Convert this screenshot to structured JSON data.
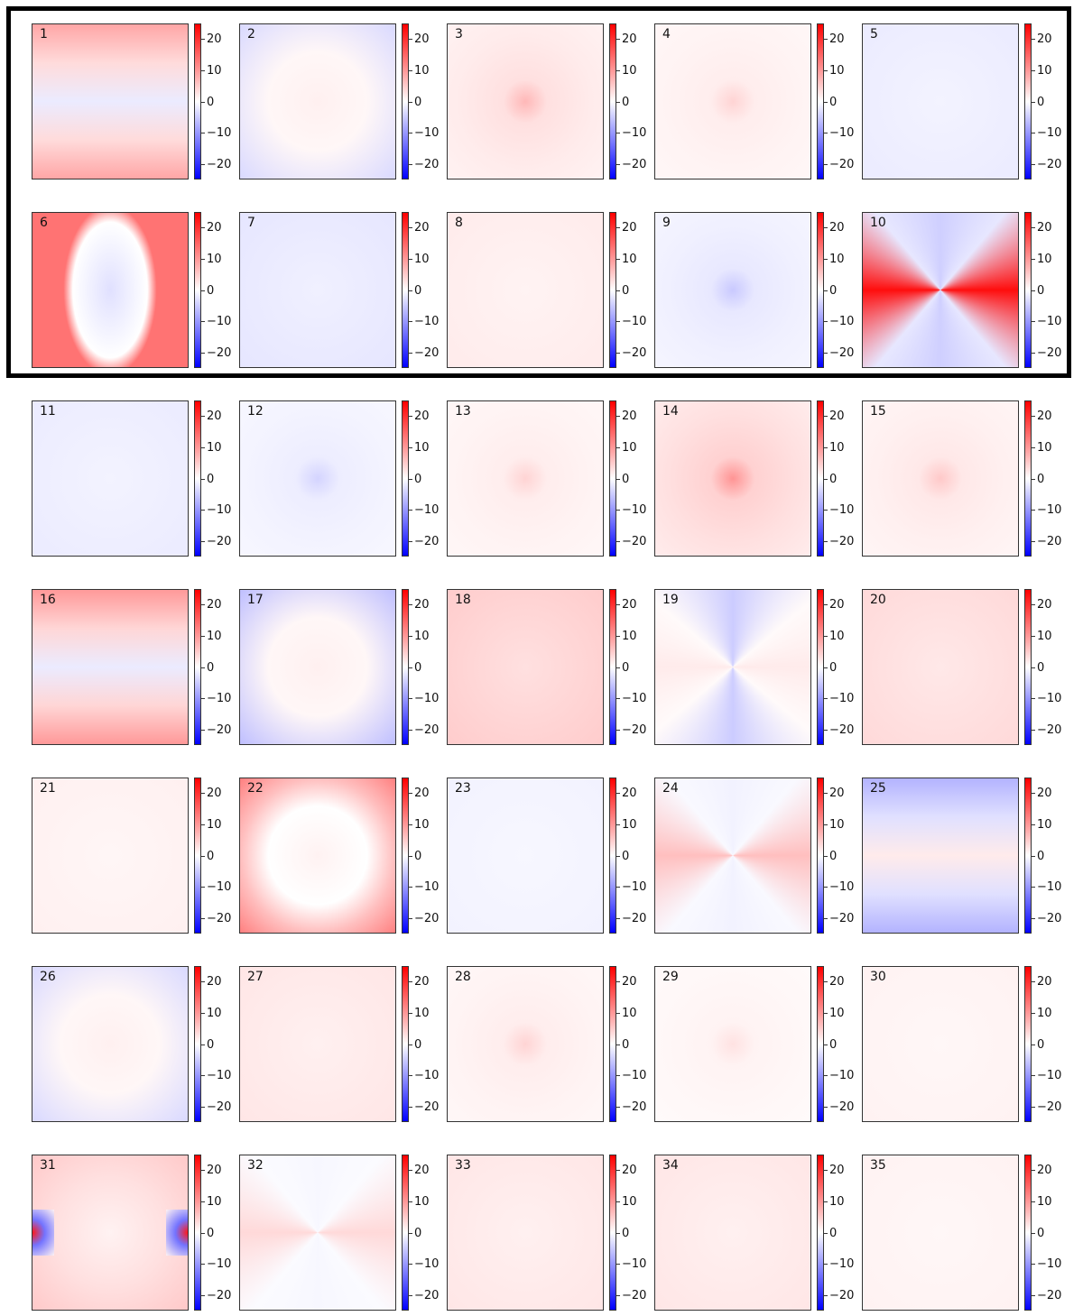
{
  "chart_data": {
    "type": "heatmap",
    "colormap": "bwr",
    "colorbar": {
      "range": [
        -25,
        25
      ],
      "ticks": [
        20,
        10,
        0,
        -10,
        -20
      ],
      "tick_labels": [
        "20",
        "10",
        "0",
        "−10",
        "−20"
      ]
    },
    "highlighted_panels": [
      "1",
      "2",
      "3",
      "4",
      "5",
      "6",
      "7",
      "8",
      "9",
      "10"
    ],
    "panels": [
      {
        "label": "1",
        "pattern": "bands-h",
        "level": 0.35
      },
      {
        "label": "2",
        "pattern": "corners",
        "level": -0.15
      },
      {
        "label": "3",
        "pattern": "radial",
        "level": 0.2
      },
      {
        "label": "4",
        "pattern": "radial",
        "level": 0.12
      },
      {
        "label": "5",
        "pattern": "uniform",
        "level": -0.08
      },
      {
        "label": "6",
        "pattern": "hourglass",
        "level": 0.55
      },
      {
        "label": "7",
        "pattern": "uniform",
        "level": -0.1
      },
      {
        "label": "8",
        "pattern": "uniform",
        "level": 0.08
      },
      {
        "label": "9",
        "pattern": "radial",
        "level": -0.15
      },
      {
        "label": "10",
        "pattern": "bowtie-h",
        "level": 0.95
      },
      {
        "label": "11",
        "pattern": "uniform",
        "level": -0.08
      },
      {
        "label": "12",
        "pattern": "radial",
        "level": -0.12
      },
      {
        "label": "13",
        "pattern": "radial",
        "level": 0.12
      },
      {
        "label": "14",
        "pattern": "radial",
        "level": 0.3
      },
      {
        "label": "15",
        "pattern": "radial",
        "level": 0.15
      },
      {
        "label": "16",
        "pattern": "bands-h",
        "level": 0.4
      },
      {
        "label": "17",
        "pattern": "corners",
        "level": -0.25
      },
      {
        "label": "18",
        "pattern": "uniform",
        "level": 0.2
      },
      {
        "label": "19",
        "pattern": "bowtie-v",
        "level": -0.2
      },
      {
        "label": "20",
        "pattern": "uniform",
        "level": 0.15
      },
      {
        "label": "21",
        "pattern": "uniform",
        "level": 0.06
      },
      {
        "label": "22",
        "pattern": "ring",
        "level": 0.5
      },
      {
        "label": "23",
        "pattern": "uniform",
        "level": -0.05
      },
      {
        "label": "24",
        "pattern": "bowtie-h",
        "level": 0.25
      },
      {
        "label": "25",
        "pattern": "bands-h",
        "level": -0.3
      },
      {
        "label": "26",
        "pattern": "corners",
        "level": -0.15
      },
      {
        "label": "27",
        "pattern": "uniform",
        "level": 0.1
      },
      {
        "label": "28",
        "pattern": "radial",
        "level": 0.12
      },
      {
        "label": "29",
        "pattern": "radial",
        "level": 0.08
      },
      {
        "label": "30",
        "pattern": "uniform",
        "level": 0.05
      },
      {
        "label": "31",
        "pattern": "edges",
        "level": 0.35
      },
      {
        "label": "32",
        "pattern": "bowtie-h",
        "level": 0.15
      },
      {
        "label": "33",
        "pattern": "uniform",
        "level": 0.1
      },
      {
        "label": "34",
        "pattern": "uniform",
        "level": 0.1
      },
      {
        "label": "35",
        "pattern": "uniform",
        "level": 0.05
      }
    ]
  }
}
